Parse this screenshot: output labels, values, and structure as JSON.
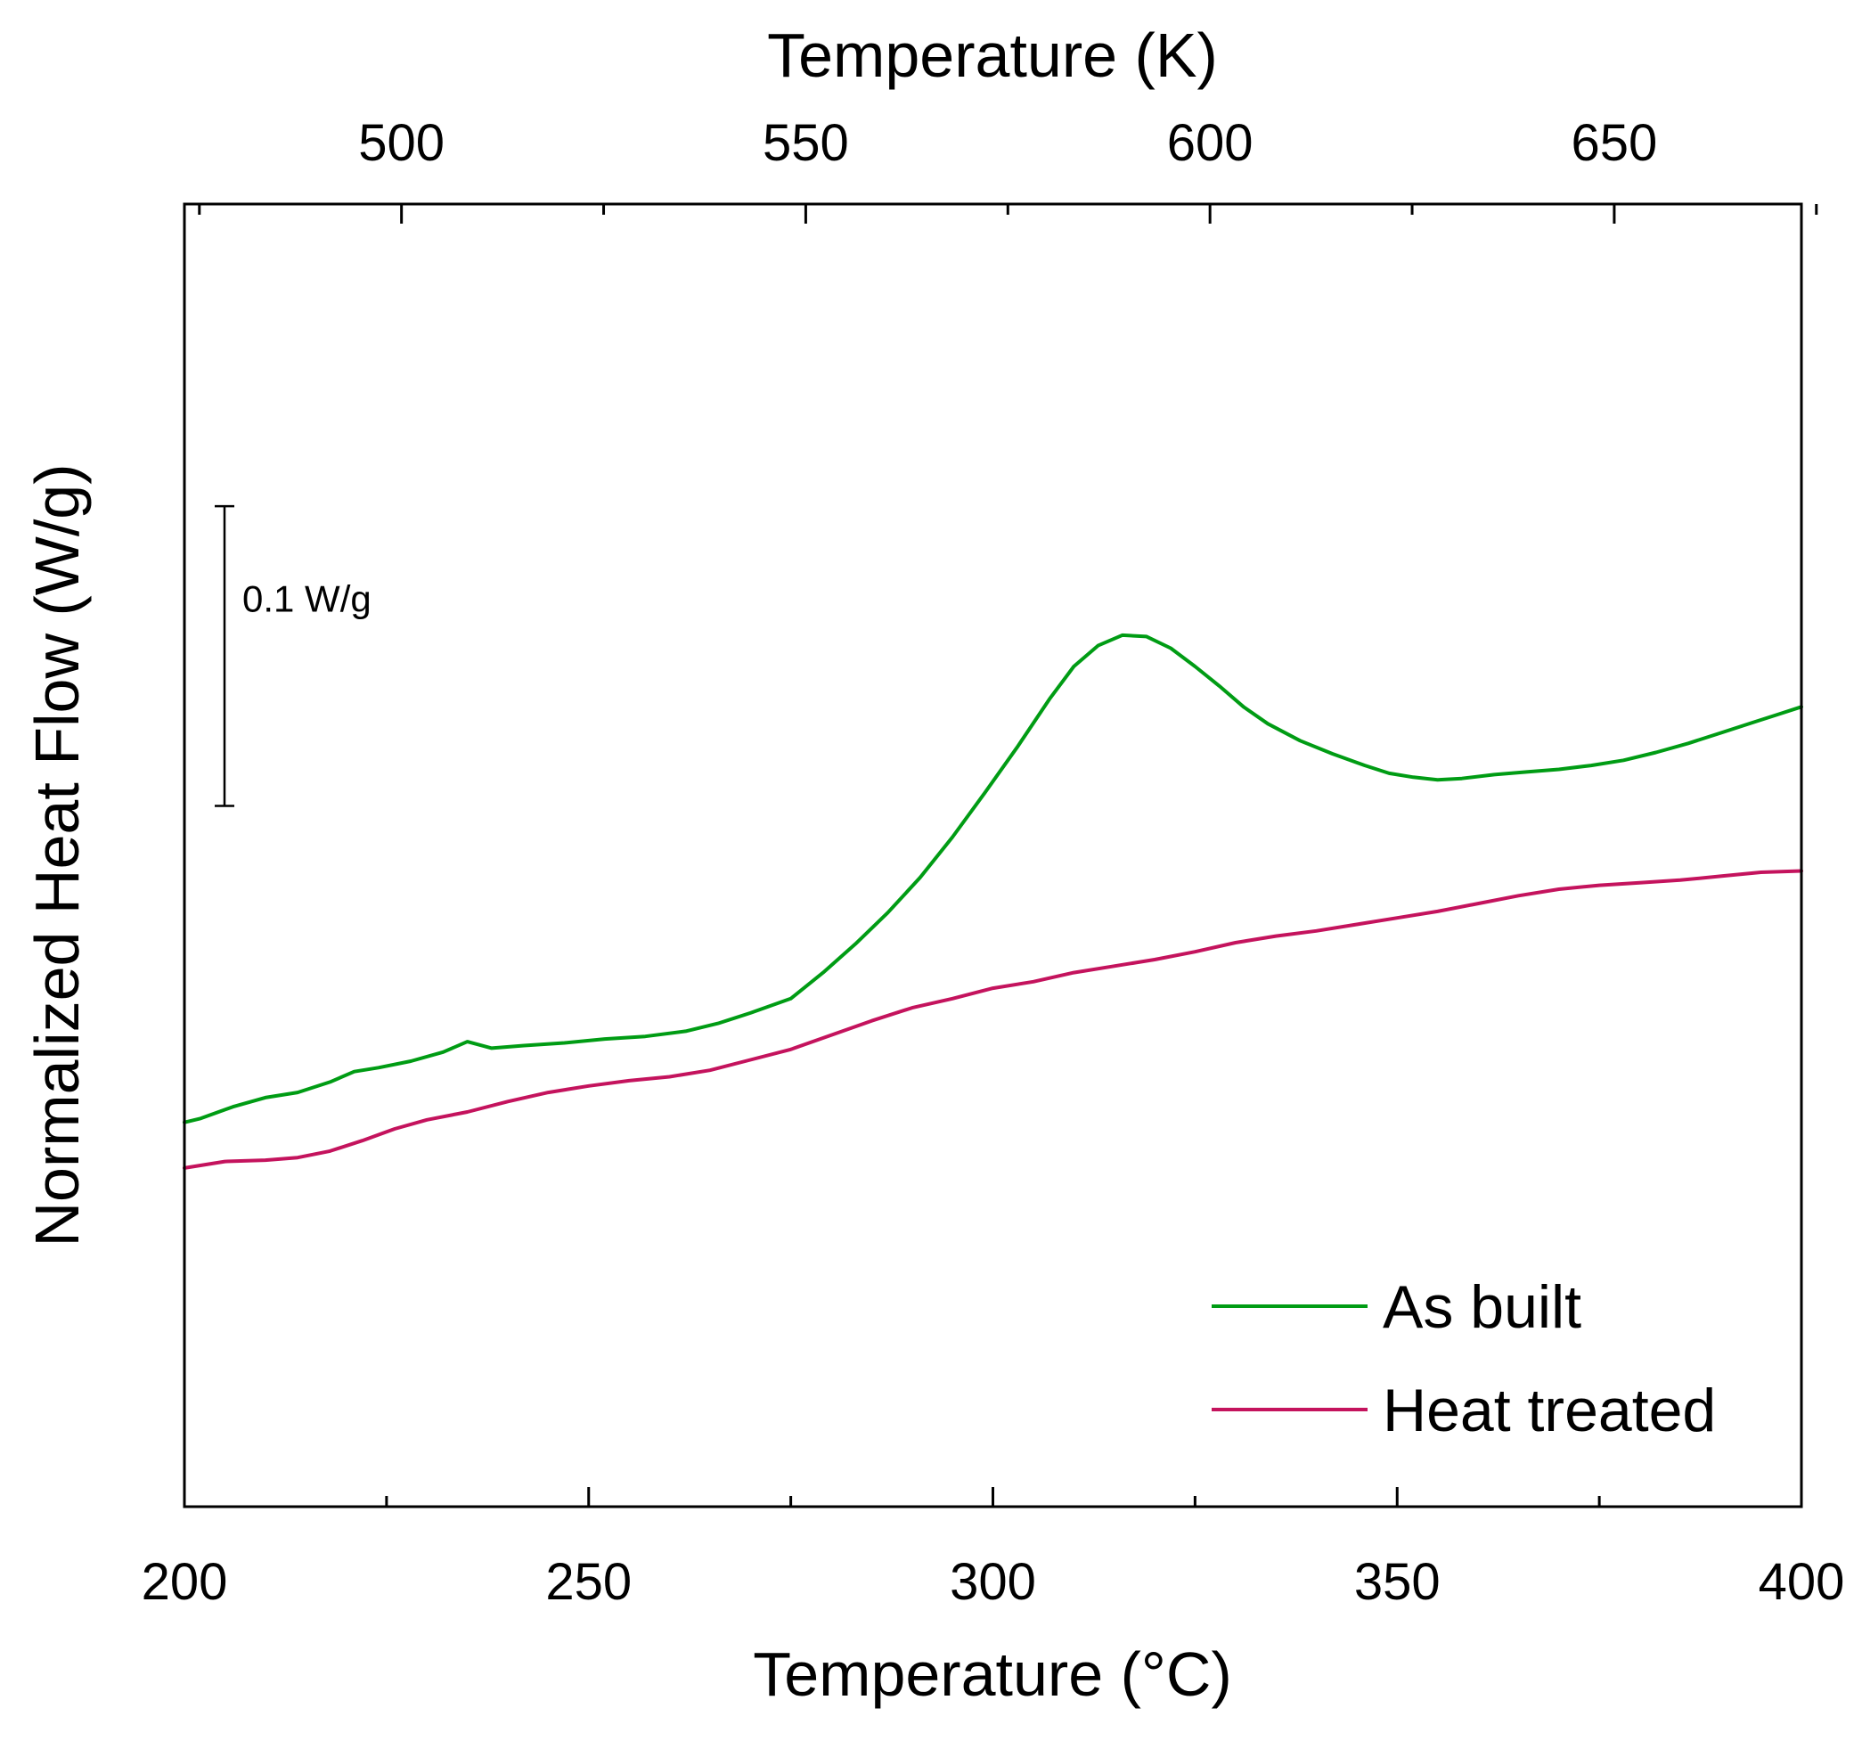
{
  "chart_data": {
    "type": "line",
    "xlabel": "Temperature (°C)",
    "x2label": "Temperature (K)",
    "ylabel": "Normalized Heat Flow (W/g)",
    "xlim": [
      200,
      400
    ],
    "ylim": [
      0,
      1
    ],
    "x_ticks": [
      "200",
      "250",
      "300",
      "350",
      "400"
    ],
    "x_minor_ticks": [
      225,
      275,
      325,
      375
    ],
    "x2_ticks": [
      "500",
      "550",
      "600",
      "650"
    ],
    "x2_minor_ticks": [
      475,
      525,
      575,
      625,
      675
    ],
    "y_ticks_shown": false,
    "scale_bar": {
      "label": "0.1 W/g",
      "value": 0.1,
      "y_from": 0.538,
      "y_to": 0.768
    },
    "legend_position": "bottom-right",
    "series": [
      {
        "name": "As built",
        "color": "#009c14",
        "x": [
          200,
          202,
          206,
          210,
          214,
          218,
          221,
          224,
          228,
          232,
          235,
          238,
          242,
          247,
          252,
          257,
          262,
          266,
          270,
          275,
          279,
          283,
          287,
          291,
          295,
          299,
          303,
          307,
          310,
          313,
          316,
          319,
          322,
          325,
          328,
          331,
          334,
          338,
          342,
          346,
          349,
          352,
          355,
          358,
          362,
          366,
          370,
          374,
          378,
          382,
          386,
          390,
          394,
          397,
          400
        ],
        "y": [
          0.295,
          0.298,
          0.307,
          0.314,
          0.318,
          0.326,
          0.334,
          0.337,
          0.342,
          0.349,
          0.357,
          0.352,
          0.354,
          0.356,
          0.359,
          0.361,
          0.365,
          0.371,
          0.379,
          0.39,
          0.41,
          0.432,
          0.456,
          0.483,
          0.514,
          0.548,
          0.583,
          0.62,
          0.645,
          0.661,
          0.669,
          0.668,
          0.659,
          0.645,
          0.63,
          0.614,
          0.601,
          0.588,
          0.578,
          0.569,
          0.563,
          0.56,
          0.558,
          0.559,
          0.562,
          0.564,
          0.566,
          0.569,
          0.573,
          0.579,
          0.586,
          0.594,
          0.602,
          0.608,
          0.614
        ]
      },
      {
        "name": "Heat treated",
        "color": "#c4135d",
        "x": [
          200,
          205,
          210,
          214,
          218,
          222,
          226,
          230,
          235,
          240,
          245,
          250,
          255,
          260,
          265,
          270,
          275,
          280,
          285,
          290,
          295,
          300,
          305,
          310,
          315,
          320,
          325,
          330,
          335,
          340,
          345,
          350,
          355,
          360,
          365,
          370,
          375,
          380,
          385,
          390,
          395,
          400
        ],
        "y": [
          0.26,
          0.265,
          0.266,
          0.268,
          0.273,
          0.281,
          0.29,
          0.297,
          0.303,
          0.311,
          0.318,
          0.323,
          0.327,
          0.33,
          0.335,
          0.343,
          0.351,
          0.362,
          0.373,
          0.383,
          0.39,
          0.398,
          0.403,
          0.41,
          0.415,
          0.42,
          0.426,
          0.433,
          0.438,
          0.442,
          0.447,
          0.452,
          0.457,
          0.463,
          0.469,
          0.474,
          0.477,
          0.479,
          0.481,
          0.484,
          0.487,
          0.488
        ]
      }
    ]
  }
}
